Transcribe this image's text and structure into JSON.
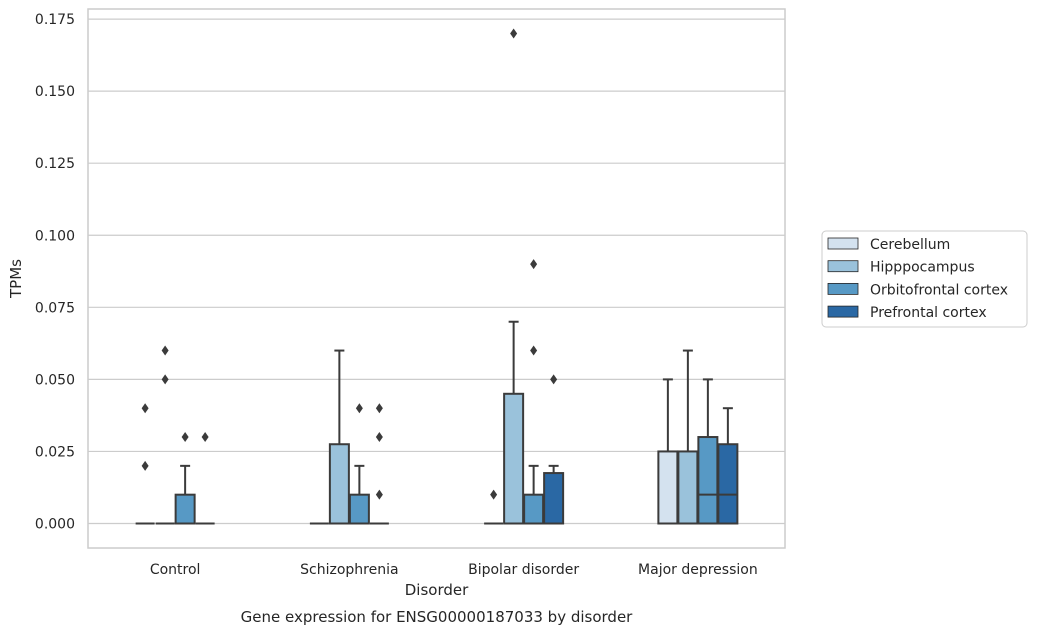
{
  "chart_data": {
    "type": "box",
    "title": "Gene expression for ENSG00000187033 by disorder",
    "xlabel": "Disorder",
    "ylabel": "TPMs",
    "ylim": [
      -0.0085,
      0.1785
    ],
    "yticks": [
      0.0,
      0.025,
      0.05,
      0.075,
      0.1,
      0.125,
      0.15,
      0.175
    ],
    "ytick_labels": [
      "0.000",
      "0.025",
      "0.050",
      "0.075",
      "0.100",
      "0.125",
      "0.150",
      "0.175"
    ],
    "grid": true,
    "legend_position": "right",
    "categories": [
      "Control",
      "Schizophrenia",
      "Bipolar disorder",
      "Major depression"
    ],
    "series": [
      {
        "name": "Cerebellum",
        "color": "#d4e2ef",
        "boxes": [
          {
            "q1": 0.0,
            "median": 0.0,
            "q3": 0.0,
            "whislo": 0.0,
            "whishi": 0.0,
            "fliers": [
              0.02,
              0.04
            ]
          },
          {
            "q1": 0.0,
            "median": 0.0,
            "q3": 0.0,
            "whislo": 0.0,
            "whishi": 0.0,
            "fliers": []
          },
          {
            "q1": 0.0,
            "median": 0.0,
            "q3": 0.0,
            "whislo": 0.0,
            "whishi": 0.0,
            "fliers": [
              0.01
            ]
          },
          {
            "q1": 0.0,
            "median": 0.0,
            "q3": 0.025,
            "whislo": 0.0,
            "whishi": 0.05,
            "fliers": []
          }
        ]
      },
      {
        "name": "Hipppocampus",
        "color": "#9ac2db",
        "boxes": [
          {
            "q1": 0.0,
            "median": 0.0,
            "q3": 0.0,
            "whislo": 0.0,
            "whishi": 0.0,
            "fliers": [
              0.05,
              0.06
            ]
          },
          {
            "q1": 0.0,
            "median": 0.0,
            "q3": 0.0275,
            "whislo": 0.0,
            "whishi": 0.06,
            "fliers": []
          },
          {
            "q1": 0.0,
            "median": 0.0,
            "q3": 0.045,
            "whislo": 0.0,
            "whishi": 0.07,
            "fliers": [
              0.17
            ]
          },
          {
            "q1": 0.0,
            "median": 0.0,
            "q3": 0.025,
            "whislo": 0.0,
            "whishi": 0.06,
            "fliers": []
          }
        ]
      },
      {
        "name": "Orbitofrontal cortex",
        "color": "#5799c5",
        "boxes": [
          {
            "q1": 0.0,
            "median": 0.0,
            "q3": 0.01,
            "whislo": 0.0,
            "whishi": 0.02,
            "fliers": [
              0.03
            ]
          },
          {
            "q1": 0.0,
            "median": 0.0,
            "q3": 0.01,
            "whislo": 0.0,
            "whishi": 0.02,
            "fliers": [
              0.04
            ]
          },
          {
            "q1": 0.0,
            "median": 0.0,
            "q3": 0.01,
            "whislo": 0.0,
            "whishi": 0.02,
            "fliers": [
              0.06,
              0.09
            ]
          },
          {
            "q1": 0.0,
            "median": 0.01,
            "q3": 0.03,
            "whislo": 0.0,
            "whishi": 0.05,
            "fliers": []
          }
        ]
      },
      {
        "name": "Prefrontal cortex",
        "color": "#2a68a4",
        "boxes": [
          {
            "q1": 0.0,
            "median": 0.0,
            "q3": 0.0,
            "whislo": 0.0,
            "whishi": 0.0,
            "fliers": [
              0.03
            ]
          },
          {
            "q1": 0.0,
            "median": 0.0,
            "q3": 0.0,
            "whislo": 0.0,
            "whishi": 0.0,
            "fliers": [
              0.01,
              0.03,
              0.04
            ]
          },
          {
            "q1": 0.0,
            "median": 0.0,
            "q3": 0.0175,
            "whislo": 0.0,
            "whishi": 0.02,
            "fliers": [
              0.05
            ]
          },
          {
            "q1": 0.0,
            "median": 0.01,
            "q3": 0.0275,
            "whislo": 0.0,
            "whishi": 0.04,
            "fliers": []
          }
        ]
      }
    ]
  }
}
